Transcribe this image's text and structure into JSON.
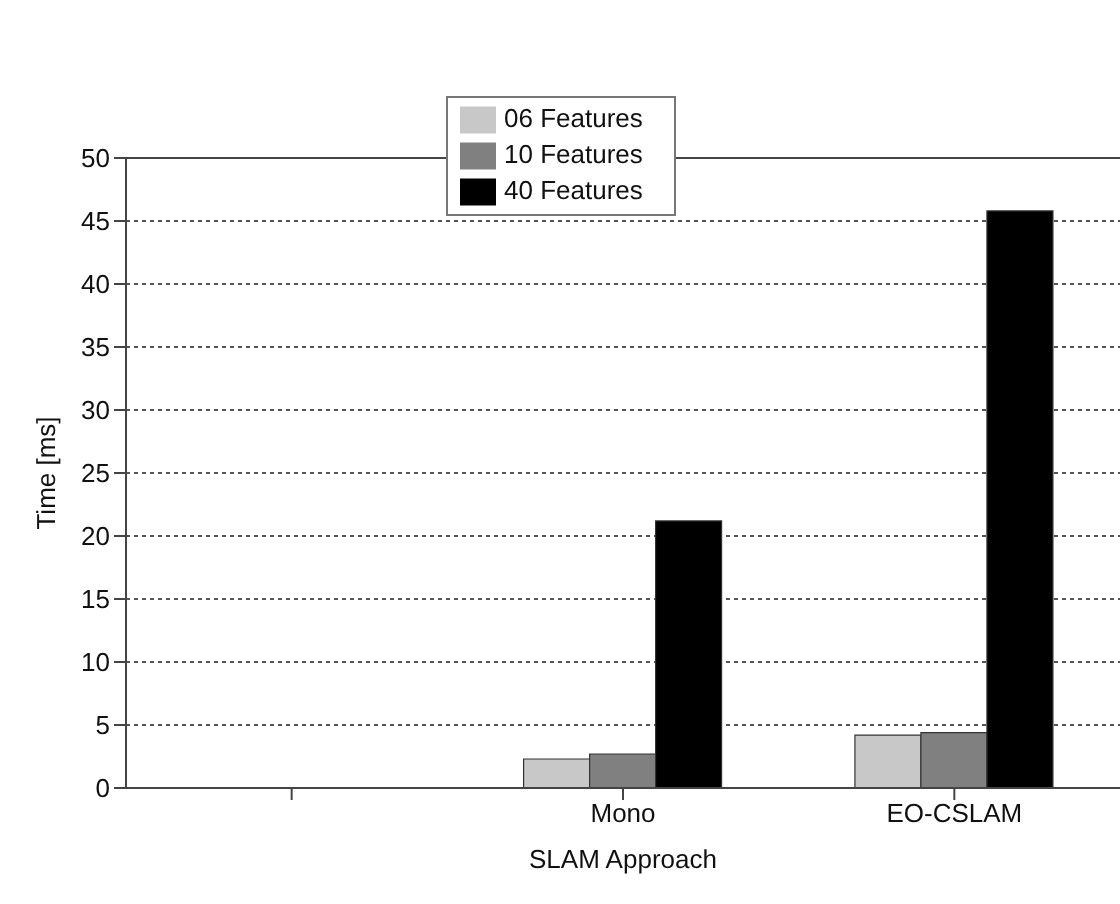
{
  "chart_data": {
    "type": "bar",
    "xlabel": "SLAM Approach",
    "ylabel": "Time [ms]",
    "categories": [
      null,
      "Mono",
      "EO-CSLAM"
    ],
    "series": [
      {
        "name": "06 Features",
        "color": "#c8c8c8",
        "values": [
          null,
          2.3,
          4.2
        ]
      },
      {
        "name": "10 Features",
        "color": "#808080",
        "values": [
          null,
          2.7,
          4.4
        ]
      },
      {
        "name": "40 Features",
        "color": "#000000",
        "values": [
          null,
          21.2,
          45.8
        ]
      }
    ],
    "ylim": [
      0,
      50
    ],
    "yticks": [
      0,
      5,
      10,
      15,
      20,
      25,
      30,
      35,
      40,
      45,
      50
    ],
    "grid": "y",
    "legend": "top"
  }
}
